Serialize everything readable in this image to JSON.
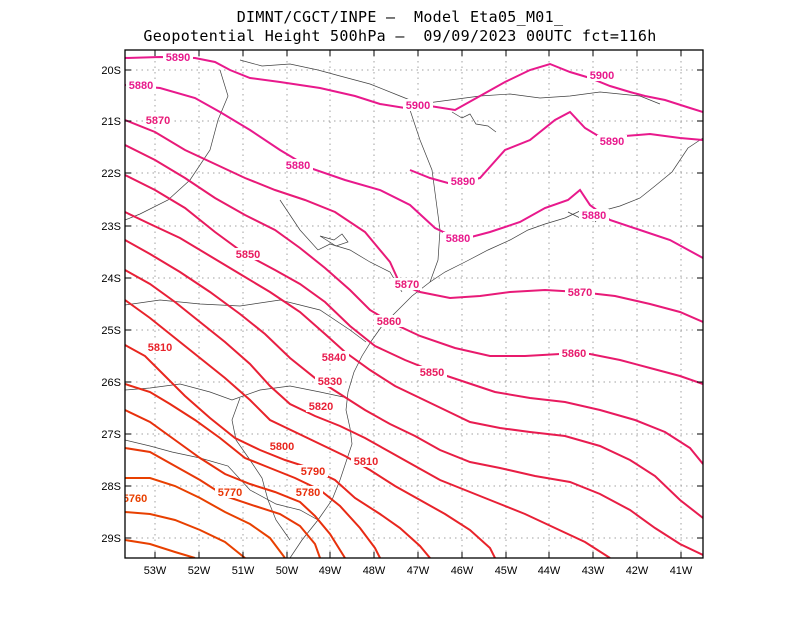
{
  "title_line1": "DIMNT/CGCT/INPE –  Model Eta05_M01_",
  "title_line2": "Geopotential Height 500hPa –  09/09/2023 00UTC fct=116h",
  "lat_labels": [
    "20S",
    "21S",
    "22S",
    "23S",
    "24S",
    "25S",
    "26S",
    "27S",
    "28S",
    "29S"
  ],
  "lon_labels": [
    "53W",
    "52W",
    "51W",
    "50W",
    "49W",
    "48W",
    "47W",
    "46W",
    "45W",
    "44W",
    "43W",
    "42W",
    "41W"
  ],
  "contours": [
    {
      "level": 5900,
      "color": "#e8198c"
    },
    {
      "level": 5890,
      "color": "#e8198c"
    },
    {
      "level": 5880,
      "color": "#e8198c"
    },
    {
      "level": 5870,
      "color": "#e81a78"
    },
    {
      "level": 5860,
      "color": "#e81a6c"
    },
    {
      "level": 5850,
      "color": "#e81a5e"
    },
    {
      "level": 5840,
      "color": "#e81c50"
    },
    {
      "level": 5830,
      "color": "#e81e44"
    },
    {
      "level": 5820,
      "color": "#e82036"
    },
    {
      "level": 5810,
      "color": "#e8232a"
    },
    {
      "level": 5800,
      "color": "#e8261e"
    },
    {
      "level": 5790,
      "color": "#e82a14"
    },
    {
      "level": 5780,
      "color": "#e8300c"
    },
    {
      "level": 5770,
      "color": "#e83808"
    },
    {
      "level": 5760,
      "color": "#e84000"
    }
  ],
  "contour_labels": [
    "5890",
    "5900",
    "5880",
    "5870",
    "5900",
    "5890",
    "5880",
    "5890",
    "5880",
    "5880",
    "5850",
    "5870",
    "5870",
    "5860",
    "5810",
    "5840",
    "5860",
    "5830",
    "5850",
    "5820",
    "5800",
    "5810",
    "5790",
    "5770",
    "5780",
    "5760"
  ],
  "label_colors": {
    "5900": "#e8198c",
    "5890": "#e8198c",
    "5880": "#e8198c",
    "5870": "#e81a78",
    "5860": "#e81a6c",
    "5850": "#e81a5e",
    "5840": "#e81c50",
    "5830": "#e81e44",
    "5820": "#e82036",
    "5810": "#e8232a",
    "5800": "#e8261e",
    "5790": "#e82a14",
    "5780": "#e8300c",
    "5770": "#e83808",
    "5760": "#e84000"
  }
}
